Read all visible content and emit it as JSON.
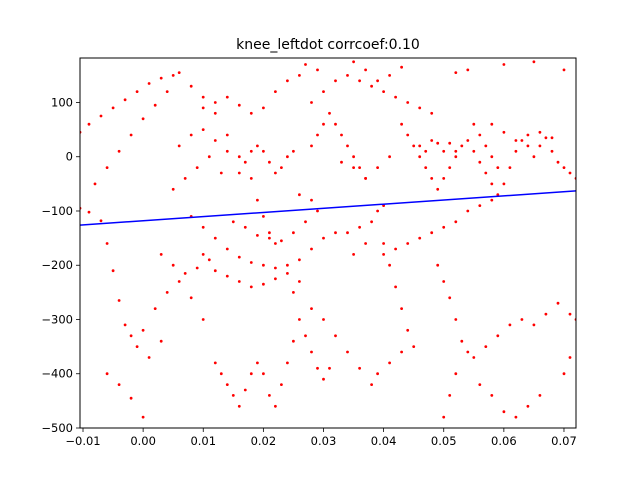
{
  "chart_data": {
    "type": "scatter",
    "title": "knee_leftdot corrcoef:0.10",
    "xlabel": "",
    "ylabel": "",
    "xlim": [
      -0.0105,
      0.072
    ],
    "ylim": [
      -500,
      182
    ],
    "xticks": [
      {
        "value": -0.01,
        "label": "−0.01"
      },
      {
        "value": 0.0,
        "label": "0.00"
      },
      {
        "value": 0.01,
        "label": "0.01"
      },
      {
        "value": 0.02,
        "label": "0.02"
      },
      {
        "value": 0.03,
        "label": "0.03"
      },
      {
        "value": 0.04,
        "label": "0.04"
      },
      {
        "value": 0.05,
        "label": "0.05"
      },
      {
        "value": 0.06,
        "label": "0.06"
      },
      {
        "value": 0.07,
        "label": "0.07"
      }
    ],
    "yticks": [
      {
        "value": 100,
        "label": "100"
      },
      {
        "value": 0,
        "label": "0"
      },
      {
        "value": -100,
        "label": "−100"
      },
      {
        "value": -200,
        "label": "−200"
      },
      {
        "value": -300,
        "label": "−300"
      },
      {
        "value": -400,
        "label": "−400"
      },
      {
        "value": -500,
        "label": "−500"
      }
    ],
    "grid": false,
    "series": [
      {
        "color": "#ff0000",
        "marker": "dot",
        "points": [
          [
            -0.0105,
            -95
          ],
          [
            -0.009,
            -102
          ],
          [
            -0.007,
            -118
          ],
          [
            -0.006,
            -160
          ],
          [
            -0.005,
            -210
          ],
          [
            -0.004,
            -265
          ],
          [
            -0.003,
            -310
          ],
          [
            -0.002,
            -330
          ],
          [
            -0.006,
            -400
          ],
          [
            -0.004,
            -420
          ],
          [
            -0.002,
            -445
          ],
          [
            0.0,
            -480
          ],
          [
            -0.0105,
            45
          ],
          [
            -0.009,
            60
          ],
          [
            -0.007,
            75
          ],
          [
            -0.005,
            90
          ],
          [
            -0.003,
            105
          ],
          [
            -0.001,
            120
          ],
          [
            0.001,
            135
          ],
          [
            0.003,
            145
          ],
          [
            0.005,
            150
          ],
          [
            0.004,
            120
          ],
          [
            0.002,
            95
          ],
          [
            0.0,
            70
          ],
          [
            -0.002,
            40
          ],
          [
            -0.004,
            10
          ],
          [
            -0.006,
            -20
          ],
          [
            -0.008,
            -50
          ],
          [
            0.006,
            155
          ],
          [
            0.008,
            130
          ],
          [
            0.01,
            110
          ],
          [
            0.012,
            80
          ],
          [
            0.014,
            40
          ],
          [
            0.016,
            0
          ],
          [
            0.018,
            -40
          ],
          [
            0.019,
            -80
          ],
          [
            0.02,
            -110
          ],
          [
            0.021,
            -140
          ],
          [
            0.022,
            -160
          ],
          [
            0.008,
            -110
          ],
          [
            0.01,
            -130
          ],
          [
            0.012,
            -150
          ],
          [
            0.014,
            -170
          ],
          [
            0.016,
            -185
          ],
          [
            0.018,
            -195
          ],
          [
            0.02,
            -200
          ],
          [
            0.022,
            -205
          ],
          [
            0.024,
            -200
          ],
          [
            0.026,
            -190
          ],
          [
            0.028,
            -170
          ],
          [
            0.03,
            -150
          ],
          [
            0.032,
            -140
          ],
          [
            0.034,
            -140
          ],
          [
            0.036,
            -130
          ],
          [
            0.038,
            -120
          ],
          [
            0.039,
            -100
          ],
          [
            0.04,
            -90
          ],
          [
            0.037,
            -160
          ],
          [
            0.035,
            -180
          ],
          [
            0.01,
            -180
          ],
          [
            0.012,
            -210
          ],
          [
            0.014,
            -220
          ],
          [
            0.016,
            -230
          ],
          [
            0.018,
            -240
          ],
          [
            0.02,
            -235
          ],
          [
            0.022,
            -225
          ],
          [
            0.024,
            -215
          ],
          [
            0.026,
            -230
          ],
          [
            0.025,
            -250
          ],
          [
            0.015,
            -120
          ],
          [
            0.017,
            -130
          ],
          [
            0.019,
            -145
          ],
          [
            0.021,
            -150
          ],
          [
            0.023,
            -155
          ],
          [
            0.025,
            -140
          ],
          [
            0.027,
            -120
          ],
          [
            0.029,
            -100
          ],
          [
            0.028,
            -80
          ],
          [
            0.026,
            -70
          ],
          [
            0.016,
            -30
          ],
          [
            0.017,
            -10
          ],
          [
            0.018,
            10
          ],
          [
            0.019,
            20
          ],
          [
            0.02,
            10
          ],
          [
            0.021,
            -10
          ],
          [
            0.022,
            -30
          ],
          [
            0.023,
            -20
          ],
          [
            0.024,
            0
          ],
          [
            0.025,
            10
          ],
          [
            0.028,
            20
          ],
          [
            0.029,
            40
          ],
          [
            0.03,
            60
          ],
          [
            0.031,
            80
          ],
          [
            0.032,
            60
          ],
          [
            0.033,
            40
          ],
          [
            0.034,
            20
          ],
          [
            0.035,
            0
          ],
          [
            0.036,
            -20
          ],
          [
            0.037,
            -40
          ],
          [
            0.028,
            100
          ],
          [
            0.03,
            120
          ],
          [
            0.032,
            140
          ],
          [
            0.034,
            150
          ],
          [
            0.036,
            140
          ],
          [
            0.038,
            130
          ],
          [
            0.04,
            120
          ],
          [
            0.042,
            110
          ],
          [
            0.044,
            100
          ],
          [
            0.046,
            90
          ],
          [
            0.048,
            80
          ],
          [
            0.043,
            60
          ],
          [
            0.044,
            40
          ],
          [
            0.045,
            20
          ],
          [
            0.046,
            0
          ],
          [
            0.047,
            -20
          ],
          [
            0.048,
            -40
          ],
          [
            0.049,
            -60
          ],
          [
            0.05,
            -40
          ],
          [
            0.051,
            -20
          ],
          [
            0.052,
            0
          ],
          [
            0.053,
            20
          ],
          [
            0.054,
            30
          ],
          [
            0.046,
            20
          ],
          [
            0.047,
            10
          ],
          [
            0.048,
            30
          ],
          [
            0.049,
            25
          ],
          [
            0.05,
            10
          ],
          [
            0.051,
            25
          ],
          [
            0.052,
            10
          ],
          [
            0.055,
            10
          ],
          [
            0.056,
            -10
          ],
          [
            0.057,
            -30
          ],
          [
            0.058,
            -50
          ],
          [
            0.059,
            -70
          ],
          [
            0.06,
            -50
          ],
          [
            0.061,
            -20
          ],
          [
            0.062,
            10
          ],
          [
            0.063,
            30
          ],
          [
            0.064,
            20
          ],
          [
            0.065,
            0
          ],
          [
            0.066,
            20
          ],
          [
            0.067,
            35
          ],
          [
            0.068,
            10
          ],
          [
            0.069,
            -10
          ],
          [
            0.07,
            -20
          ],
          [
            0.071,
            -30
          ],
          [
            0.072,
            -40
          ],
          [
            0.058,
            60
          ],
          [
            0.06,
            45
          ],
          [
            0.062,
            30
          ],
          [
            0.064,
            40
          ],
          [
            0.066,
            45
          ],
          [
            0.068,
            35
          ],
          [
            0.055,
            60
          ],
          [
            0.056,
            40
          ],
          [
            0.057,
            20
          ],
          [
            0.058,
            0
          ],
          [
            0.059,
            -20
          ],
          [
            0.033,
            -10
          ],
          [
            0.035,
            -20
          ],
          [
            0.037,
            -40
          ],
          [
            0.039,
            -20
          ],
          [
            0.041,
            0
          ],
          [
            0.04,
            -160
          ],
          [
            0.041,
            -200
          ],
          [
            0.042,
            -240
          ],
          [
            0.043,
            -280
          ],
          [
            0.044,
            -320
          ],
          [
            0.045,
            -350
          ],
          [
            0.043,
            -360
          ],
          [
            0.041,
            -380
          ],
          [
            0.039,
            -400
          ],
          [
            0.038,
            -420
          ],
          [
            0.036,
            -390
          ],
          [
            0.034,
            -360
          ],
          [
            0.032,
            -330
          ],
          [
            0.03,
            -300
          ],
          [
            0.028,
            -280
          ],
          [
            0.026,
            -300
          ],
          [
            0.025,
            -340
          ],
          [
            0.024,
            -380
          ],
          [
            0.023,
            -420
          ],
          [
            0.022,
            -460
          ],
          [
            0.021,
            -440
          ],
          [
            0.02,
            -400
          ],
          [
            0.019,
            -380
          ],
          [
            0.018,
            -400
          ],
          [
            0.017,
            -430
          ],
          [
            0.016,
            -460
          ],
          [
            0.015,
            -440
          ],
          [
            0.014,
            -420
          ],
          [
            0.013,
            -400
          ],
          [
            0.012,
            -380
          ],
          [
            0.01,
            -300
          ],
          [
            0.008,
            -260
          ],
          [
            0.006,
            -230
          ],
          [
            0.004,
            -250
          ],
          [
            0.002,
            -280
          ],
          [
            0.0,
            -320
          ],
          [
            -0.001,
            -350
          ],
          [
            0.001,
            -370
          ],
          [
            0.003,
            -340
          ],
          [
            0.027,
            -330
          ],
          [
            0.028,
            -360
          ],
          [
            0.029,
            -390
          ],
          [
            0.03,
            -410
          ],
          [
            0.031,
            -390
          ],
          [
            0.049,
            -200
          ],
          [
            0.05,
            -230
          ],
          [
            0.051,
            -260
          ],
          [
            0.052,
            -300
          ],
          [
            0.053,
            -340
          ],
          [
            0.054,
            -360
          ],
          [
            0.055,
            -370
          ],
          [
            0.057,
            -350
          ],
          [
            0.059,
            -330
          ],
          [
            0.061,
            -310
          ],
          [
            0.063,
            -300
          ],
          [
            0.065,
            -310
          ],
          [
            0.067,
            -290
          ],
          [
            0.069,
            -270
          ],
          [
            0.071,
            -290
          ],
          [
            0.072,
            -300
          ],
          [
            0.05,
            -480
          ],
          [
            0.051,
            -440
          ],
          [
            0.052,
            -400
          ],
          [
            0.056,
            -420
          ],
          [
            0.058,
            -440
          ],
          [
            0.06,
            -470
          ],
          [
            0.062,
            -480
          ],
          [
            0.064,
            -460
          ],
          [
            0.066,
            -440
          ],
          [
            0.07,
            -400
          ],
          [
            0.071,
            -370
          ],
          [
            0.04,
            -180
          ],
          [
            0.042,
            -170
          ],
          [
            0.044,
            -160
          ],
          [
            0.046,
            -150
          ],
          [
            0.048,
            -140
          ],
          [
            0.05,
            -130
          ],
          [
            0.052,
            -120
          ],
          [
            0.054,
            -100
          ],
          [
            0.056,
            -90
          ],
          [
            0.058,
            -80
          ],
          [
            0.01,
            90
          ],
          [
            0.012,
            100
          ],
          [
            0.014,
            110
          ],
          [
            0.016,
            95
          ],
          [
            0.018,
            80
          ],
          [
            0.02,
            90
          ],
          [
            0.022,
            120
          ],
          [
            0.024,
            140
          ],
          [
            0.026,
            150
          ],
          [
            0.027,
            170
          ],
          [
            0.029,
            160
          ],
          [
            0.005,
            -60
          ],
          [
            0.007,
            -40
          ],
          [
            0.009,
            -20
          ],
          [
            0.011,
            0
          ],
          [
            0.013,
            -30
          ],
          [
            0.003,
            -180
          ],
          [
            0.005,
            -200
          ],
          [
            0.007,
            -215
          ],
          [
            0.009,
            -205
          ],
          [
            0.011,
            -190
          ],
          [
            0.006,
            20
          ],
          [
            0.008,
            40
          ],
          [
            0.01,
            50
          ],
          [
            0.012,
            30
          ],
          [
            0.014,
            10
          ],
          [
            0.035,
            175
          ],
          [
            0.037,
            160
          ],
          [
            0.039,
            140
          ],
          [
            0.041,
            150
          ],
          [
            0.043,
            165
          ],
          [
            0.052,
            155
          ],
          [
            0.054,
            160
          ],
          [
            0.06,
            170
          ],
          [
            0.065,
            175
          ],
          [
            0.07,
            160
          ]
        ]
      }
    ],
    "fit_line": {
      "color": "#0000ff",
      "x": [
        -0.0105,
        0.072
      ],
      "y": [
        -126,
        -63
      ]
    }
  }
}
